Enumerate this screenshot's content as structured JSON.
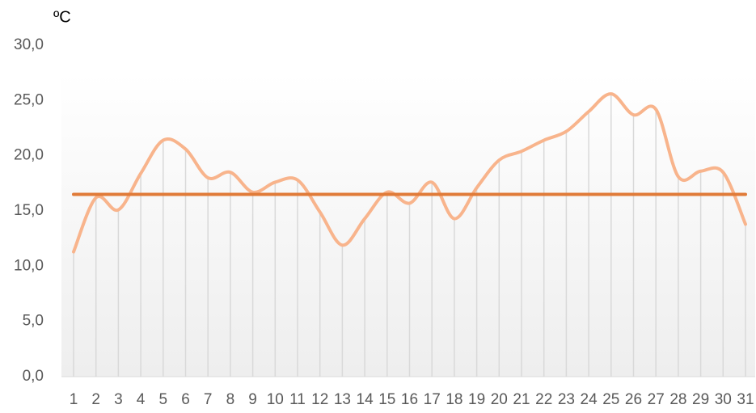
{
  "chart_data": {
    "type": "line",
    "unit_label": "ºC",
    "categories": [
      "1",
      "2",
      "3",
      "4",
      "5",
      "6",
      "7",
      "8",
      "9",
      "10",
      "11",
      "12",
      "13",
      "14",
      "15",
      "16",
      "17",
      "18",
      "19",
      "20",
      "21",
      "22",
      "23",
      "24",
      "25",
      "26",
      "27",
      "28",
      "29",
      "30",
      "31"
    ],
    "series": [
      {
        "color": "#f8b48c",
        "smooth": true,
        "drop_lines": true,
        "values": [
          11.3,
          16.2,
          15.1,
          18.4,
          21.4,
          20.6,
          18.0,
          18.5,
          16.7,
          17.6,
          17.8,
          14.9,
          11.9,
          14.3,
          16.7,
          15.7,
          17.6,
          14.3,
          17.1,
          19.6,
          20.4,
          21.4,
          22.2,
          24.0,
          25.6,
          23.7,
          24.2,
          18.1,
          18.6,
          18.5,
          13.8
        ]
      },
      {
        "color": "#e07b39",
        "smooth": false,
        "drop_lines": false,
        "values": [
          16.5,
          16.5,
          16.5,
          16.5,
          16.5,
          16.5,
          16.5,
          16.5,
          16.5,
          16.5,
          16.5,
          16.5,
          16.5,
          16.5,
          16.5,
          16.5,
          16.5,
          16.5,
          16.5,
          16.5,
          16.5,
          16.5,
          16.5,
          16.5,
          16.5,
          16.5,
          16.5,
          16.5,
          16.5,
          16.5,
          16.5
        ]
      }
    ],
    "ylim": [
      0,
      30
    ],
    "yticks": [
      {
        "value": 0,
        "label": "0,0"
      },
      {
        "value": 5,
        "label": "5,0"
      },
      {
        "value": 10,
        "label": "10,0"
      },
      {
        "value": 15,
        "label": "15,0"
      },
      {
        "value": 20,
        "label": "20,0"
      },
      {
        "value": 25,
        "label": "25,0"
      },
      {
        "value": 30,
        "label": "30,0"
      }
    ]
  }
}
